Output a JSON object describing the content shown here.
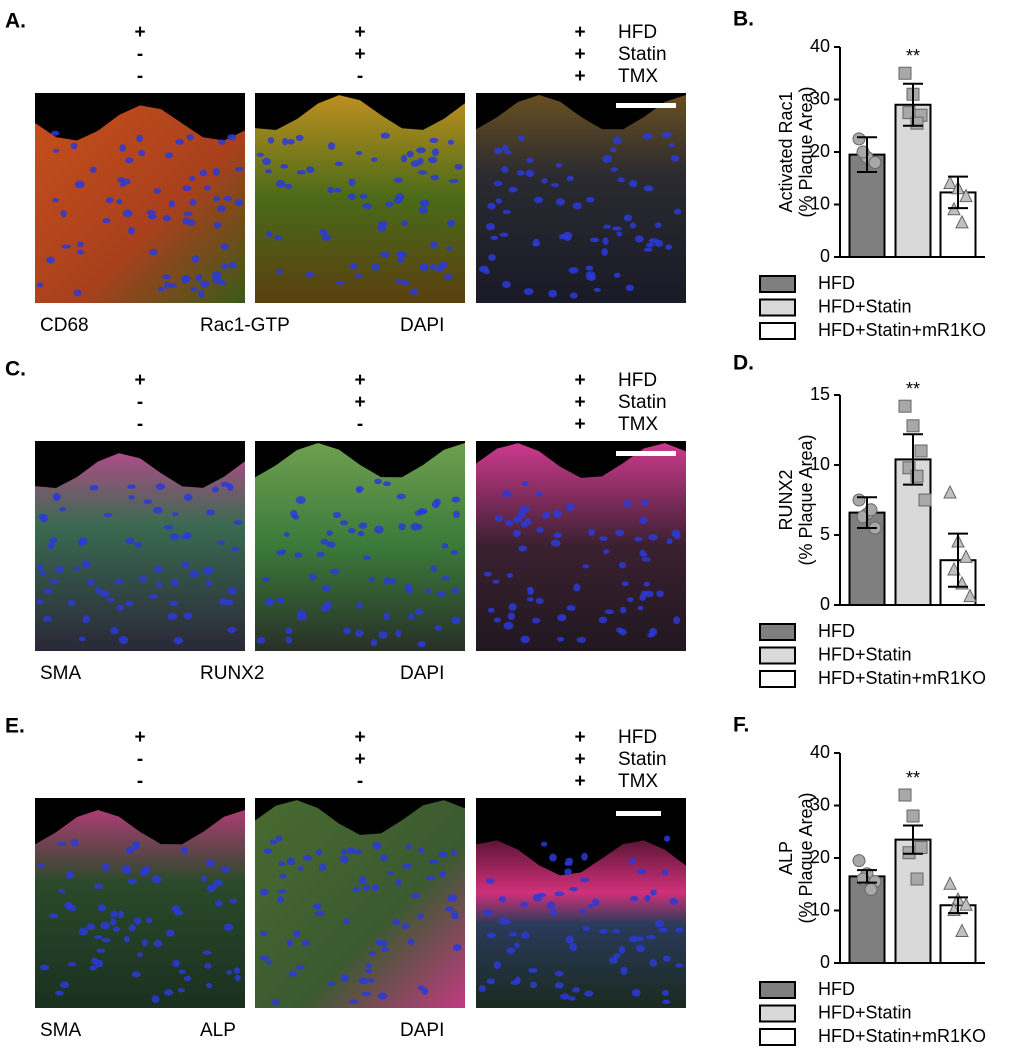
{
  "image_panels": [
    {
      "label": "A.",
      "treatments": [
        "HFD",
        "Statin",
        "TMX"
      ],
      "columns": [
        [
          "+",
          "-",
          "-"
        ],
        [
          "+",
          "+",
          "-"
        ],
        [
          "+",
          "+",
          "+"
        ]
      ],
      "stains": [
        {
          "text": "CD68",
          "color": "#e8262a"
        },
        {
          "text": "Rac1-GTP",
          "color": "#2aa84a"
        },
        {
          "text": "DAPI",
          "color": "#1f6fc1"
        }
      ]
    },
    {
      "label": "C.",
      "treatments": [
        "HFD",
        "Statin",
        "TMX"
      ],
      "columns": [
        [
          "+",
          "-",
          "-"
        ],
        [
          "+",
          "+",
          "-"
        ],
        [
          "+",
          "+",
          "+"
        ]
      ],
      "stains": [
        {
          "text": "SMA",
          "color": "#e040c8"
        },
        {
          "text": "RUNX2",
          "color": "#2aa84a"
        },
        {
          "text": "DAPI",
          "color": "#1f6fc1"
        }
      ]
    },
    {
      "label": "E.",
      "treatments": [
        "HFD",
        "Statin",
        "TMX"
      ],
      "columns": [
        [
          "+",
          "-",
          "-"
        ],
        [
          "+",
          "+",
          "-"
        ],
        [
          "+",
          "+",
          "+"
        ]
      ],
      "stains": [
        {
          "text": "SMA",
          "color": "#e040c8"
        },
        {
          "text": "ALP",
          "color": "#2aa84a"
        },
        {
          "text": "DAPI",
          "color": "#1f6fc1"
        }
      ]
    }
  ],
  "chart_data": [
    {
      "type": "bar",
      "label": "B.",
      "ylabel": [
        "Activated Rac1",
        "(% Plaque Area)"
      ],
      "categories": [
        "HFD",
        "HFD+Statin",
        "HFD+Statin+mR1KO"
      ],
      "colors": [
        "#7f7f7f",
        "#d9d9d9",
        "#ffffff"
      ],
      "values": [
        19.5,
        29,
        12.3
      ],
      "errors": [
        3.3,
        4,
        3
      ],
      "points": [
        [
          22.5,
          19,
          18,
          20
        ],
        [
          35,
          31,
          27,
          27.5,
          25.5
        ],
        [
          14,
          13,
          11.5,
          9,
          6.5
        ]
      ],
      "ylim": [
        0,
        40
      ],
      "yticks": [
        0,
        10,
        20,
        30,
        40
      ],
      "annotation": {
        "text": "**",
        "category": "HFD+Statin"
      }
    },
    {
      "type": "bar",
      "label": "D.",
      "ylabel": [
        "RUNX2",
        "(% Plaque Area)"
      ],
      "categories": [
        "HFD",
        "HFD+Statin",
        "HFD+Statin+mR1KO"
      ],
      "colors": [
        "#7f7f7f",
        "#d9d9d9",
        "#ffffff"
      ],
      "values": [
        6.6,
        10.4,
        3.2
      ],
      "errors": [
        1.1,
        1.8,
        1.9
      ],
      "points": [
        [
          7.5,
          6.5,
          5.5,
          6.3,
          6.8
        ],
        [
          14.2,
          12.8,
          11,
          9.8,
          9.2,
          7.5
        ],
        [
          8,
          4.5,
          3.4,
          2.5,
          1.5,
          0.6
        ]
      ],
      "ylim": [
        0,
        15
      ],
      "yticks": [
        0,
        5,
        10,
        15
      ],
      "annotation": {
        "text": "**",
        "category": "HFD+Statin"
      }
    },
    {
      "type": "bar",
      "label": "F.",
      "ylabel": [
        "ALP",
        "(% Plaque Area)"
      ],
      "categories": [
        "HFD",
        "HFD+Statin",
        "HFD+Statin+mR1KO"
      ],
      "colors": [
        "#7f7f7f",
        "#d9d9d9",
        "#ffffff"
      ],
      "values": [
        16.5,
        23.5,
        11
      ],
      "errors": [
        1.2,
        2.7,
        1.5
      ],
      "points": [
        [
          19.5,
          17,
          15.5,
          16,
          14
        ],
        [
          32,
          28,
          22,
          21,
          16
        ],
        [
          15,
          12,
          11,
          10,
          6
        ]
      ],
      "ylim": [
        0,
        40
      ],
      "yticks": [
        0,
        10,
        20,
        30,
        40
      ],
      "annotation": {
        "text": "**",
        "category": "HFD+Statin"
      }
    }
  ]
}
